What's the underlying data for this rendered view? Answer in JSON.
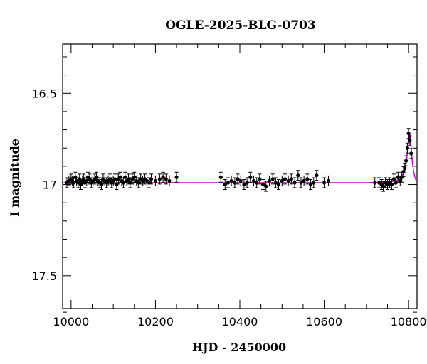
{
  "chart_data": {
    "type": "scatter",
    "title": "OGLE-2025-BLG-0703",
    "xlabel": "HJD - 2450000",
    "ylabel": "I magnitude",
    "xlim": [
      9980,
      10820
    ],
    "ylim": [
      17.68,
      16.23
    ],
    "y_inverted": true,
    "grid": false,
    "x_ticks": [
      10000,
      10200,
      10400,
      10600,
      10800
    ],
    "x_tick_labels": [
      "10000",
      "10200",
      "10400",
      "10600",
      "10800"
    ],
    "y_ticks": [
      16.5,
      17,
      17.5
    ],
    "y_tick_labels": [
      "16.5",
      "17",
      "17.5"
    ],
    "colors": {
      "points": "#000000",
      "model": "#cc00cc"
    },
    "model": {
      "x": [
        9980,
        10700,
        10760,
        10780,
        10790,
        10795,
        10800,
        10803,
        10806,
        10809,
        10812,
        10815,
        10818,
        10820
      ],
      "y": [
        16.99,
        16.99,
        16.985,
        16.97,
        16.93,
        16.87,
        16.76,
        16.72,
        16.8,
        16.88,
        16.93,
        16.96,
        16.98,
        16.985
      ]
    },
    "series": [
      {
        "x": [
          9990,
          9995,
          10000,
          10003,
          10006,
          10010,
          10013,
          10017,
          10020,
          10023,
          10027,
          10030,
          10033,
          10037,
          10040,
          10044,
          10048,
          10052,
          10056,
          10060,
          10064,
          10068,
          10072,
          10076,
          10080,
          10084,
          10088,
          10092,
          10096,
          10100,
          10104,
          10108,
          10112,
          10116,
          10120,
          10124,
          10128,
          10132,
          10136,
          10140,
          10145,
          10150,
          10155,
          10160,
          10165,
          10170,
          10175,
          10180,
          10185,
          10190,
          10200,
          10210,
          10218,
          10225,
          10233,
          10250,
          10355,
          10365,
          10372,
          10380,
          10388,
          10395,
          10402,
          10410,
          10417,
          10425,
          10433,
          10440,
          10447,
          10455,
          10462,
          10470,
          10478,
          10485,
          10492,
          10500,
          10507,
          10515,
          10522,
          10530,
          10538,
          10545,
          10552,
          10560,
          10568,
          10575,
          10582,
          10600,
          10610,
          10720,
          10730,
          10736,
          10740,
          10745,
          10750,
          10755,
          10760,
          10765,
          10770,
          10775,
          10780,
          10784,
          10788,
          10791,
          10794,
          10797,
          10800,
          10803,
          10806
        ],
        "y": [
          16.99,
          16.98,
          16.97,
          16.98,
          16.99,
          16.96,
          16.98,
          16.99,
          16.97,
          17.0,
          16.98,
          16.97,
          16.99,
          16.98,
          16.96,
          16.97,
          16.99,
          16.98,
          16.97,
          16.96,
          16.98,
          16.99,
          17.0,
          16.97,
          16.98,
          16.99,
          16.98,
          16.97,
          16.99,
          16.98,
          16.97,
          17.0,
          16.97,
          16.96,
          16.98,
          16.99,
          16.96,
          16.98,
          16.97,
          16.99,
          16.97,
          16.96,
          16.98,
          16.99,
          16.97,
          16.98,
          16.97,
          16.98,
          16.99,
          16.97,
          16.98,
          16.97,
          16.96,
          16.97,
          16.98,
          16.96,
          16.96,
          17.0,
          16.99,
          16.98,
          16.99,
          16.97,
          16.98,
          17.0,
          16.99,
          16.96,
          16.98,
          16.99,
          16.97,
          17.0,
          17.01,
          16.98,
          16.97,
          16.99,
          17.0,
          16.98,
          16.97,
          16.98,
          16.97,
          16.99,
          16.95,
          16.99,
          16.98,
          16.97,
          17.0,
          16.99,
          16.95,
          16.99,
          16.98,
          16.99,
          16.99,
          17.0,
          17.01,
          16.99,
          17.0,
          16.99,
          17.0,
          16.97,
          16.99,
          16.96,
          16.98,
          16.96,
          16.93,
          16.91,
          16.87,
          16.8,
          16.72,
          16.76,
          16.83
        ]
      }
    ]
  }
}
